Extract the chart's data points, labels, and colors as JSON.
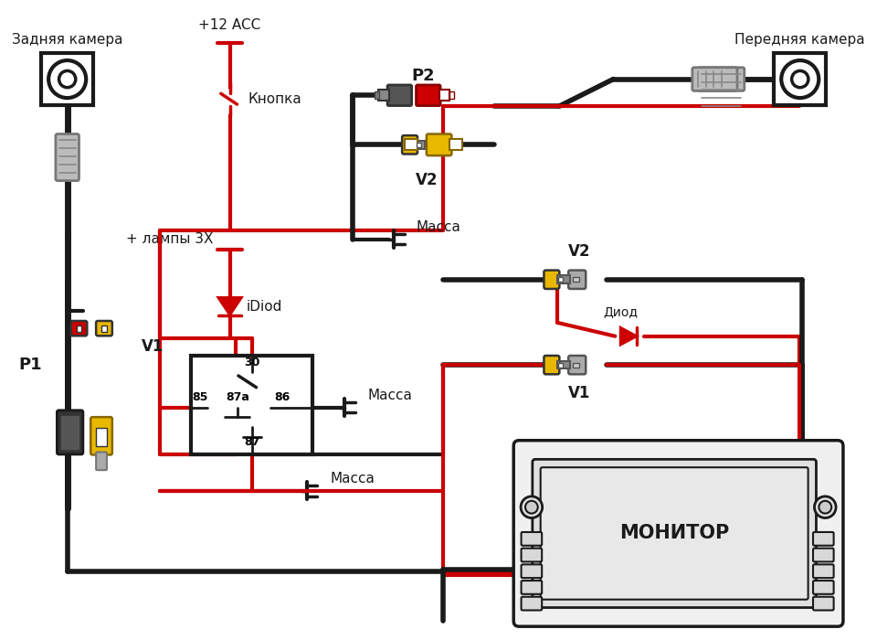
{
  "bg_color": "#ffffff",
  "black": "#1a1a1a",
  "red": "#cc0000",
  "yellow": "#e8b800",
  "gray_light": "#cccccc",
  "gray_dark": "#888888",
  "labels": {
    "rear_camera": "Задняя камера",
    "front_camera": "Передняя камера",
    "plus12acc": "+12 ACC",
    "button": "Кнопка",
    "lamp_plus": "+ лампы 3Х",
    "idiod": "iDiod",
    "massa1": "Масса",
    "massa2": "Масса",
    "massa3": "Масса",
    "p1": "P1",
    "p2": "P2",
    "v1_left": "V1",
    "v2_left": "V2",
    "v1_right": "V1",
    "v2_right": "V2",
    "diod": "Диод",
    "monitor": "МОНИТОР",
    "relay_30": "30",
    "relay_85": "85",
    "relay_87a": "87a",
    "relay_86": "86",
    "relay_87": "87"
  }
}
